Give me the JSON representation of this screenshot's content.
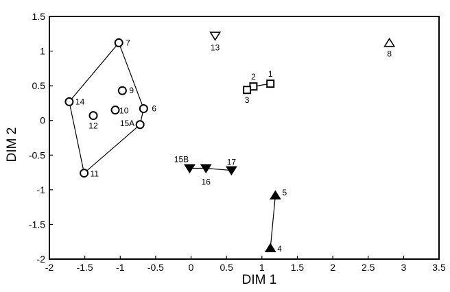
{
  "chart_data": {
    "type": "scatter",
    "title": "",
    "xlabel": "DIM 1",
    "ylabel": "DIM 2",
    "xlim": [
      -2,
      3.5
    ],
    "ylim": [
      -2,
      1.5
    ],
    "grid": false,
    "x_ticks": [
      -2,
      -1.5,
      -1,
      -0.5,
      0,
      0.5,
      1,
      1.5,
      2,
      2.5,
      3,
      3.5
    ],
    "x_tick_labels": [
      "-2",
      "-1.5",
      "-1",
      "-0.5",
      "0",
      "0.5",
      "1",
      "1.5",
      "2",
      "2.5",
      "3",
      "3.5"
    ],
    "y_ticks": [
      -2,
      -1.5,
      -1,
      -0.5,
      0,
      0.5,
      1,
      1.5
    ],
    "y_tick_labels": [
      "-2",
      "-1.5",
      "-1",
      "-0.5",
      "0",
      "0.5",
      "1",
      "1.5"
    ],
    "series": [
      {
        "marker": "circle-open",
        "hull": [
          "7",
          "6",
          "15A",
          "11",
          "14"
        ],
        "points": [
          {
            "label": "7",
            "x": -1.02,
            "y": 1.12
          },
          {
            "label": "14",
            "x": -1.72,
            "y": 0.27
          },
          {
            "label": "9",
            "x": -0.97,
            "y": 0.43
          },
          {
            "label": "6",
            "x": -0.67,
            "y": 0.17
          },
          {
            "label": "12",
            "x": -1.38,
            "y": 0.07
          },
          {
            "label": "10",
            "x": -1.07,
            "y": 0.15
          },
          {
            "label": "15A",
            "x": -0.72,
            "y": -0.06
          },
          {
            "label": "11",
            "x": -1.51,
            "y": -0.76
          }
        ]
      },
      {
        "marker": "square-open",
        "connect": [
          "3",
          "2",
          "1"
        ],
        "points": [
          {
            "label": "1",
            "x": 1.12,
            "y": 0.53
          },
          {
            "label": "2",
            "x": 0.88,
            "y": 0.49
          },
          {
            "label": "3",
            "x": 0.79,
            "y": 0.44
          }
        ]
      },
      {
        "marker": "triangle-down-filled",
        "connect": [
          "15B",
          "16",
          "17"
        ],
        "points": [
          {
            "label": "15B",
            "x": -0.02,
            "y": -0.69
          },
          {
            "label": "16",
            "x": 0.21,
            "y": -0.69
          },
          {
            "label": "17",
            "x": 0.57,
            "y": -0.72
          }
        ]
      },
      {
        "marker": "triangle-up-filled",
        "connect": [
          "4",
          "5"
        ],
        "points": [
          {
            "label": "5",
            "x": 1.19,
            "y": -1.08
          },
          {
            "label": "4",
            "x": 1.12,
            "y": -1.84
          }
        ]
      },
      {
        "marker": "triangle-down-open",
        "points": [
          {
            "label": "13",
            "x": 0.34,
            "y": 1.22
          }
        ]
      },
      {
        "marker": "triangle-up-open",
        "points": [
          {
            "label": "8",
            "x": 2.8,
            "y": 1.12
          }
        ]
      }
    ]
  }
}
